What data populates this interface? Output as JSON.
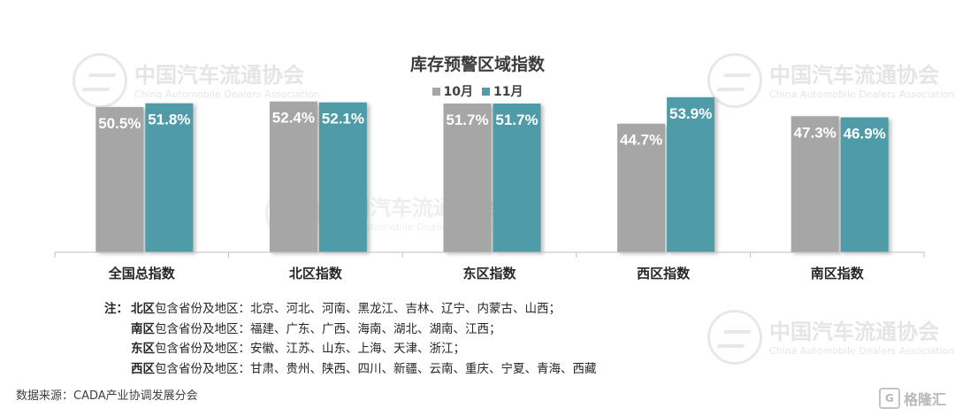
{
  "watermark": {
    "cn": "中国汽车流通协会",
    "en": "China Automobile Dealers Association"
  },
  "chart_data": {
    "type": "bar",
    "title": "库存预警区域指数",
    "categories": [
      "全国总指数",
      "北区指数",
      "东区指数",
      "西区指数",
      "南区指数"
    ],
    "series": [
      {
        "name": "10月",
        "color": "#a6a6a6",
        "values": [
          50.5,
          52.4,
          51.7,
          44.7,
          47.3
        ],
        "labels": [
          "50.5%",
          "52.4%",
          "51.7%",
          "44.7%",
          "47.3%"
        ]
      },
      {
        "name": "11月",
        "color": "#4f9ca8",
        "values": [
          51.8,
          52.1,
          51.7,
          53.9,
          46.9
        ],
        "labels": [
          "51.8%",
          "52.1%",
          "51.7%",
          "53.9%",
          "46.9%"
        ]
      }
    ],
    "legend_position": "top",
    "grid": false
  },
  "notes": {
    "prefix": "注：",
    "lines": [
      {
        "region": "北区",
        "text": "包含省份及地区：北京、河北、河南、黑龙江、吉林、辽宁、内蒙古、山西；"
      },
      {
        "region": "南区",
        "text": "包含省份及地区：福建、广东、广西、海南、湖北、湖南、江西；"
      },
      {
        "region": "东区",
        "text": "包含省份及地区：安徽、江苏、山东、上海、天津、浙江；"
      },
      {
        "region": "西区",
        "text": "包含省份及地区：甘肃、贵州、陕西、四川、新疆、云南、重庆、宁夏、青海、西藏"
      }
    ]
  },
  "source": "数据来源：CADA产业协调发展分会",
  "brand": {
    "text": "格隆汇",
    "icon": "G"
  }
}
